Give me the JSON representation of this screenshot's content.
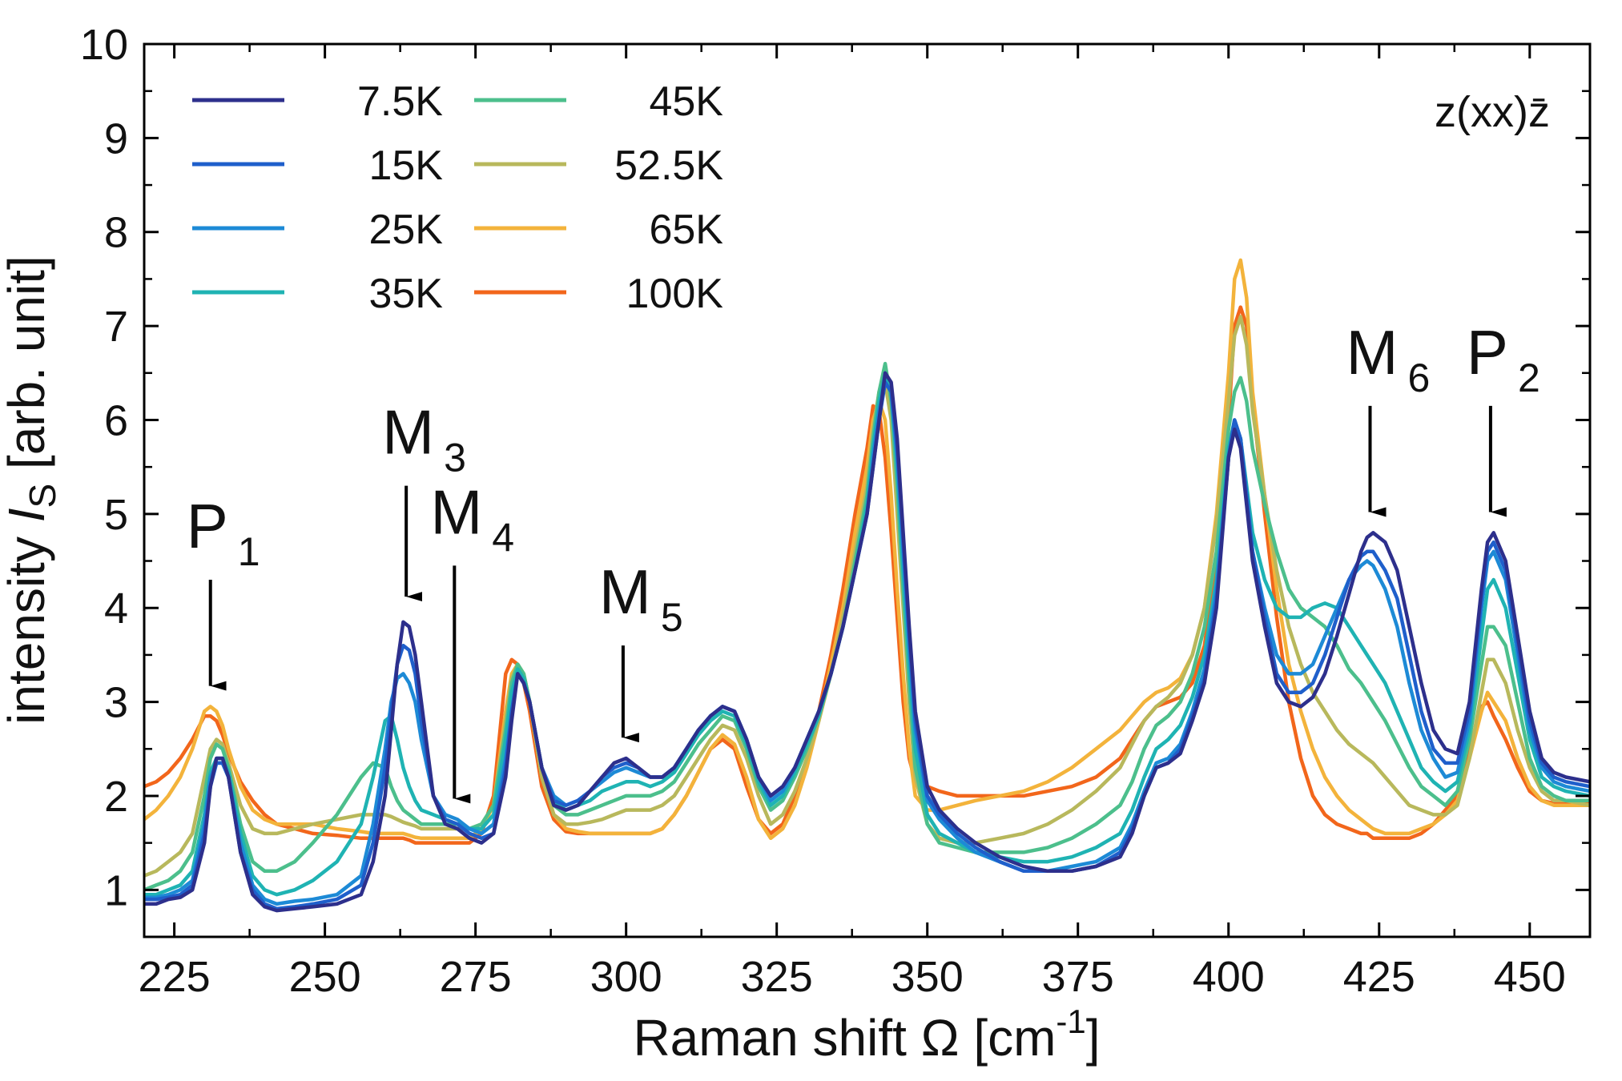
{
  "chart_data": {
    "type": "line",
    "x": [
      220,
      222,
      224,
      226,
      228,
      230,
      231,
      232,
      233,
      234,
      236,
      238,
      240,
      242,
      245,
      248,
      252,
      256,
      258,
      260,
      261,
      262,
      263,
      264,
      265,
      266,
      268,
      270,
      272,
      274,
      276,
      278,
      280,
      281,
      282,
      283,
      284,
      286,
      288,
      290,
      292,
      294,
      296,
      298,
      300,
      302,
      304,
      306,
      308,
      310,
      312,
      314,
      316,
      318,
      320,
      322,
      324,
      326,
      328,
      330,
      332,
      334,
      336,
      338,
      340,
      341,
      342,
      343,
      344,
      345,
      346,
      347,
      348,
      350,
      352,
      355,
      358,
      362,
      366,
      370,
      374,
      378,
      382,
      384,
      386,
      388,
      390,
      392,
      394,
      396,
      398,
      400,
      401,
      402,
      403,
      404,
      406,
      408,
      410,
      412,
      414,
      416,
      418,
      420,
      422,
      423,
      424,
      426,
      428,
      430,
      432,
      434,
      436,
      438,
      440,
      442,
      443,
      444,
      446,
      448,
      450,
      452,
      454,
      456,
      460
    ],
    "series": [
      {
        "name": "7.5K",
        "color": "#2d2f8c",
        "values": [
          0.85,
          0.85,
          0.9,
          0.92,
          1.0,
          1.5,
          2.1,
          2.4,
          2.4,
          2.2,
          1.4,
          0.95,
          0.82,
          0.78,
          0.8,
          0.82,
          0.85,
          0.95,
          1.3,
          2.0,
          2.7,
          3.4,
          3.85,
          3.8,
          3.5,
          3.0,
          2.0,
          1.7,
          1.65,
          1.55,
          1.5,
          1.6,
          2.2,
          2.8,
          3.3,
          3.2,
          3.0,
          2.3,
          1.9,
          1.85,
          1.9,
          2.05,
          2.2,
          2.35,
          2.4,
          2.3,
          2.2,
          2.2,
          2.3,
          2.5,
          2.7,
          2.85,
          2.95,
          2.9,
          2.6,
          2.2,
          2.0,
          2.1,
          2.3,
          2.6,
          2.9,
          3.3,
          3.8,
          4.4,
          5.0,
          5.5,
          6.0,
          6.5,
          6.4,
          5.8,
          4.8,
          3.8,
          2.9,
          2.1,
          1.85,
          1.65,
          1.5,
          1.35,
          1.25,
          1.2,
          1.2,
          1.25,
          1.35,
          1.6,
          2.0,
          2.3,
          2.35,
          2.45,
          2.8,
          3.2,
          4.0,
          5.6,
          5.9,
          5.7,
          5.1,
          4.5,
          3.8,
          3.2,
          3.0,
          2.95,
          3.05,
          3.3,
          3.7,
          4.15,
          4.6,
          4.75,
          4.8,
          4.7,
          4.4,
          3.8,
          3.2,
          2.7,
          2.5,
          2.45,
          3.0,
          4.2,
          4.7,
          4.8,
          4.5,
          3.7,
          2.9,
          2.4,
          2.25,
          2.2,
          2.15
        ]
      },
      {
        "name": "15K",
        "color": "#1f5fcb",
        "values": [
          0.9,
          0.9,
          0.92,
          0.95,
          1.05,
          1.6,
          2.1,
          2.35,
          2.35,
          2.2,
          1.4,
          1.0,
          0.85,
          0.8,
          0.82,
          0.85,
          0.9,
          1.05,
          1.5,
          2.3,
          2.9,
          3.4,
          3.6,
          3.55,
          3.3,
          2.8,
          2.0,
          1.75,
          1.7,
          1.6,
          1.55,
          1.6,
          2.3,
          2.9,
          3.3,
          3.2,
          3.0,
          2.3,
          1.95,
          1.9,
          1.95,
          2.05,
          2.2,
          2.3,
          2.35,
          2.3,
          2.2,
          2.2,
          2.3,
          2.5,
          2.7,
          2.85,
          2.95,
          2.9,
          2.6,
          2.2,
          2.0,
          2.1,
          2.3,
          2.6,
          2.9,
          3.3,
          3.8,
          4.4,
          5.0,
          5.5,
          6.0,
          6.4,
          6.3,
          5.7,
          4.7,
          3.7,
          2.8,
          2.0,
          1.8,
          1.6,
          1.45,
          1.3,
          1.2,
          1.2,
          1.2,
          1.25,
          1.4,
          1.65,
          2.0,
          2.3,
          2.35,
          2.5,
          2.85,
          3.25,
          4.1,
          5.6,
          6.0,
          5.8,
          5.2,
          4.6,
          3.9,
          3.3,
          3.1,
          3.1,
          3.2,
          3.5,
          3.9,
          4.3,
          4.55,
          4.6,
          4.6,
          4.4,
          4.1,
          3.5,
          2.9,
          2.5,
          2.35,
          2.35,
          2.9,
          4.1,
          4.6,
          4.7,
          4.4,
          3.6,
          2.8,
          2.35,
          2.2,
          2.15,
          2.1
        ]
      },
      {
        "name": "25K",
        "color": "#1d8ad6",
        "values": [
          0.92,
          0.92,
          0.95,
          1.0,
          1.1,
          1.7,
          2.2,
          2.35,
          2.35,
          2.2,
          1.5,
          1.05,
          0.9,
          0.85,
          0.88,
          0.9,
          0.95,
          1.15,
          1.7,
          2.5,
          3.0,
          3.25,
          3.3,
          3.2,
          3.0,
          2.6,
          2.0,
          1.8,
          1.75,
          1.65,
          1.6,
          1.7,
          2.4,
          2.9,
          3.3,
          3.2,
          3.0,
          2.3,
          2.0,
          1.9,
          1.95,
          2.05,
          2.15,
          2.25,
          2.3,
          2.25,
          2.2,
          2.2,
          2.3,
          2.5,
          2.7,
          2.85,
          2.95,
          2.9,
          2.6,
          2.2,
          1.95,
          2.05,
          2.3,
          2.6,
          2.9,
          3.3,
          3.8,
          4.4,
          5.0,
          5.6,
          6.1,
          6.4,
          6.3,
          5.6,
          4.6,
          3.6,
          2.7,
          1.95,
          1.75,
          1.55,
          1.4,
          1.3,
          1.2,
          1.2,
          1.25,
          1.3,
          1.45,
          1.7,
          2.05,
          2.35,
          2.4,
          2.55,
          2.9,
          3.35,
          4.2,
          5.6,
          6.0,
          5.8,
          5.2,
          4.6,
          4.0,
          3.5,
          3.3,
          3.3,
          3.4,
          3.7,
          4.0,
          4.3,
          4.45,
          4.5,
          4.45,
          4.2,
          3.8,
          3.2,
          2.7,
          2.4,
          2.2,
          2.25,
          2.8,
          4.0,
          4.5,
          4.6,
          4.3,
          3.5,
          2.7,
          2.3,
          2.15,
          2.1,
          2.05
        ]
      },
      {
        "name": "35K",
        "color": "#1fb3b3",
        "values": [
          0.95,
          0.95,
          1.0,
          1.05,
          1.2,
          1.8,
          2.25,
          2.4,
          2.4,
          2.25,
          1.6,
          1.15,
          1.0,
          0.95,
          1.0,
          1.1,
          1.3,
          1.7,
          2.2,
          2.8,
          2.85,
          2.6,
          2.3,
          2.1,
          1.95,
          1.85,
          1.8,
          1.75,
          1.7,
          1.65,
          1.65,
          1.8,
          2.6,
          3.1,
          3.35,
          3.25,
          3.0,
          2.3,
          1.95,
          1.85,
          1.9,
          1.95,
          2.05,
          2.1,
          2.15,
          2.15,
          2.1,
          2.15,
          2.25,
          2.45,
          2.65,
          2.8,
          2.9,
          2.85,
          2.55,
          2.15,
          1.9,
          2.0,
          2.25,
          2.55,
          2.85,
          3.3,
          3.8,
          4.4,
          5.1,
          5.7,
          6.2,
          6.5,
          6.3,
          5.5,
          4.4,
          3.4,
          2.5,
          1.8,
          1.6,
          1.5,
          1.4,
          1.35,
          1.3,
          1.3,
          1.35,
          1.45,
          1.6,
          1.85,
          2.2,
          2.5,
          2.6,
          2.75,
          3.05,
          3.5,
          4.3,
          5.7,
          6.0,
          5.8,
          5.3,
          4.8,
          4.3,
          4.0,
          3.9,
          3.9,
          4.0,
          4.05,
          4.0,
          3.8,
          3.6,
          3.5,
          3.4,
          3.2,
          2.9,
          2.6,
          2.3,
          2.15,
          2.05,
          2.15,
          2.7,
          3.7,
          4.2,
          4.3,
          4.0,
          3.3,
          2.6,
          2.2,
          2.1,
          2.05,
          2.0
        ]
      },
      {
        "name": "45K",
        "color": "#4cbf8c",
        "values": [
          1.0,
          1.05,
          1.1,
          1.2,
          1.4,
          2.0,
          2.4,
          2.55,
          2.5,
          2.3,
          1.7,
          1.3,
          1.2,
          1.2,
          1.3,
          1.5,
          1.8,
          2.2,
          2.35,
          2.3,
          2.1,
          1.95,
          1.85,
          1.8,
          1.75,
          1.7,
          1.7,
          1.7,
          1.7,
          1.65,
          1.7,
          1.9,
          2.7,
          3.2,
          3.4,
          3.3,
          3.0,
          2.3,
          1.9,
          1.8,
          1.8,
          1.85,
          1.9,
          1.95,
          2.0,
          2.0,
          2.0,
          2.05,
          2.15,
          2.35,
          2.55,
          2.7,
          2.85,
          2.8,
          2.5,
          2.1,
          1.85,
          1.95,
          2.2,
          2.5,
          2.85,
          3.3,
          3.8,
          4.5,
          5.2,
          5.8,
          6.3,
          6.6,
          6.2,
          5.3,
          4.2,
          3.2,
          2.3,
          1.7,
          1.5,
          1.45,
          1.4,
          1.4,
          1.4,
          1.45,
          1.55,
          1.7,
          1.9,
          2.15,
          2.5,
          2.75,
          2.85,
          3.0,
          3.3,
          3.8,
          4.6,
          5.9,
          6.3,
          6.45,
          6.2,
          5.7,
          5.1,
          4.6,
          4.2,
          4.0,
          3.9,
          3.8,
          3.6,
          3.35,
          3.2,
          3.1,
          3.0,
          2.8,
          2.55,
          2.3,
          2.1,
          2.0,
          1.9,
          2.05,
          2.6,
          3.4,
          3.8,
          3.8,
          3.6,
          3.0,
          2.4,
          2.1,
          2.0,
          1.95,
          1.95
        ]
      },
      {
        "name": "52.5K",
        "color": "#b8b85c",
        "values": [
          1.15,
          1.2,
          1.3,
          1.4,
          1.6,
          2.2,
          2.5,
          2.6,
          2.55,
          2.35,
          1.9,
          1.65,
          1.6,
          1.6,
          1.65,
          1.7,
          1.75,
          1.8,
          1.8,
          1.8,
          1.78,
          1.75,
          1.72,
          1.7,
          1.68,
          1.65,
          1.65,
          1.65,
          1.65,
          1.65,
          1.7,
          1.9,
          2.8,
          3.25,
          3.4,
          3.3,
          3.0,
          2.2,
          1.8,
          1.7,
          1.7,
          1.72,
          1.75,
          1.8,
          1.85,
          1.85,
          1.85,
          1.9,
          2.0,
          2.2,
          2.4,
          2.6,
          2.75,
          2.7,
          2.4,
          2.0,
          1.7,
          1.8,
          2.05,
          2.4,
          2.8,
          3.3,
          3.9,
          4.6,
          5.3,
          5.9,
          6.3,
          6.4,
          6.0,
          5.0,
          4.0,
          3.0,
          2.2,
          1.7,
          1.55,
          1.5,
          1.5,
          1.55,
          1.6,
          1.7,
          1.85,
          2.05,
          2.3,
          2.55,
          2.8,
          2.95,
          3.05,
          3.2,
          3.5,
          4.0,
          4.9,
          6.2,
          6.9,
          7.1,
          6.8,
          6.1,
          5.2,
          4.4,
          3.8,
          3.4,
          3.1,
          2.9,
          2.7,
          2.55,
          2.45,
          2.4,
          2.35,
          2.2,
          2.05,
          1.9,
          1.85,
          1.8,
          1.8,
          1.9,
          2.4,
          3.1,
          3.45,
          3.45,
          3.2,
          2.7,
          2.3,
          2.05,
          1.95,
          1.95,
          1.9
        ]
      },
      {
        "name": "65K",
        "color": "#f3b33b",
        "values": [
          1.75,
          1.85,
          2.0,
          2.2,
          2.5,
          2.9,
          2.95,
          2.9,
          2.75,
          2.5,
          2.1,
          1.85,
          1.75,
          1.7,
          1.7,
          1.7,
          1.65,
          1.62,
          1.6,
          1.6,
          1.6,
          1.6,
          1.6,
          1.58,
          1.56,
          1.55,
          1.55,
          1.55,
          1.55,
          1.55,
          1.65,
          1.9,
          2.9,
          3.3,
          3.4,
          3.3,
          3.0,
          2.2,
          1.8,
          1.65,
          1.62,
          1.6,
          1.6,
          1.6,
          1.6,
          1.6,
          1.6,
          1.65,
          1.8,
          2.0,
          2.25,
          2.5,
          2.65,
          2.55,
          2.2,
          1.75,
          1.55,
          1.65,
          1.9,
          2.3,
          2.8,
          3.4,
          4.0,
          4.8,
          5.5,
          6.0,
          6.2,
          6.0,
          5.2,
          4.2,
          3.3,
          2.5,
          2.0,
          1.85,
          1.85,
          1.9,
          1.95,
          2.0,
          2.05,
          2.15,
          2.3,
          2.5,
          2.7,
          2.85,
          3.0,
          3.1,
          3.15,
          3.25,
          3.5,
          4.0,
          5.0,
          6.5,
          7.5,
          7.7,
          7.3,
          6.3,
          5.2,
          4.2,
          3.4,
          2.9,
          2.5,
          2.2,
          2.0,
          1.85,
          1.75,
          1.7,
          1.65,
          1.6,
          1.6,
          1.6,
          1.65,
          1.7,
          1.8,
          1.95,
          2.4,
          2.9,
          3.1,
          3.0,
          2.8,
          2.4,
          2.1,
          1.95,
          1.9,
          1.9,
          1.9
        ]
      },
      {
        "name": "100K",
        "color": "#f2661b",
        "values": [
          2.1,
          2.15,
          2.25,
          2.4,
          2.6,
          2.85,
          2.85,
          2.8,
          2.65,
          2.45,
          2.15,
          1.95,
          1.8,
          1.7,
          1.65,
          1.6,
          1.58,
          1.55,
          1.55,
          1.55,
          1.55,
          1.55,
          1.55,
          1.53,
          1.5,
          1.5,
          1.5,
          1.5,
          1.5,
          1.5,
          1.6,
          2.0,
          3.3,
          3.45,
          3.4,
          3.2,
          2.9,
          2.1,
          1.75,
          1.62,
          1.6,
          1.6,
          1.6,
          1.6,
          1.6,
          1.6,
          1.6,
          1.65,
          1.8,
          2.0,
          2.25,
          2.5,
          2.6,
          2.5,
          2.1,
          1.75,
          1.6,
          1.7,
          2.0,
          2.4,
          2.9,
          3.5,
          4.2,
          5.0,
          5.7,
          6.15,
          6.1,
          5.6,
          4.8,
          3.9,
          3.0,
          2.4,
          2.15,
          2.1,
          2.05,
          2.0,
          2.0,
          2.0,
          2.0,
          2.05,
          2.1,
          2.2,
          2.4,
          2.6,
          2.8,
          2.95,
          3.0,
          3.05,
          3.2,
          3.6,
          4.5,
          6.0,
          7.0,
          7.2,
          7.0,
          6.2,
          5.0,
          3.9,
          3.0,
          2.4,
          2.0,
          1.8,
          1.7,
          1.65,
          1.6,
          1.6,
          1.55,
          1.55,
          1.55,
          1.55,
          1.6,
          1.7,
          1.85,
          2.0,
          2.5,
          2.95,
          3.0,
          2.85,
          2.6,
          2.3,
          2.05,
          1.95,
          1.92,
          1.92,
          1.92
        ]
      }
    ],
    "xlim": [
      220,
      460
    ],
    "ylim": [
      0.5,
      10
    ],
    "xticks": [
      "225",
      "250",
      "275",
      "300",
      "325",
      "350",
      "375",
      "400",
      "425",
      "450"
    ],
    "yticks": [
      "1",
      "2",
      "3",
      "4",
      "5",
      "6",
      "7",
      "8",
      "9",
      "10"
    ],
    "xlabel": {
      "main": "Raman shift Ω [cm",
      "sup": "-1",
      "end": "]"
    },
    "ylabel": {
      "main": "intensity ",
      "italic": "I",
      "sub": "S",
      "end": " [arb. unit]"
    },
    "legend_position": "top-left",
    "grid": false,
    "polarization_label": "z(xx)z̄",
    "annotations": [
      {
        "label": "P",
        "sub": "1",
        "x": 231,
        "y_tip": 3.0,
        "y_tail": 4.3
      },
      {
        "label": "M",
        "sub": "3",
        "x": 263.5,
        "y_tip": 3.95,
        "y_tail": 5.3
      },
      {
        "label": "M",
        "sub": "4",
        "x": 271.5,
        "y_tip": 1.8,
        "y_tail": 4.45
      },
      {
        "label": "M",
        "sub": "5",
        "x": 299.5,
        "y_tip": 2.45,
        "y_tail": 3.6
      },
      {
        "label": "M",
        "sub": "6",
        "x": 423.5,
        "y_tip": 4.85,
        "y_tail": 6.15
      },
      {
        "label": "P",
        "sub": "2",
        "x": 443.5,
        "y_tip": 4.85,
        "y_tail": 6.15
      }
    ]
  }
}
